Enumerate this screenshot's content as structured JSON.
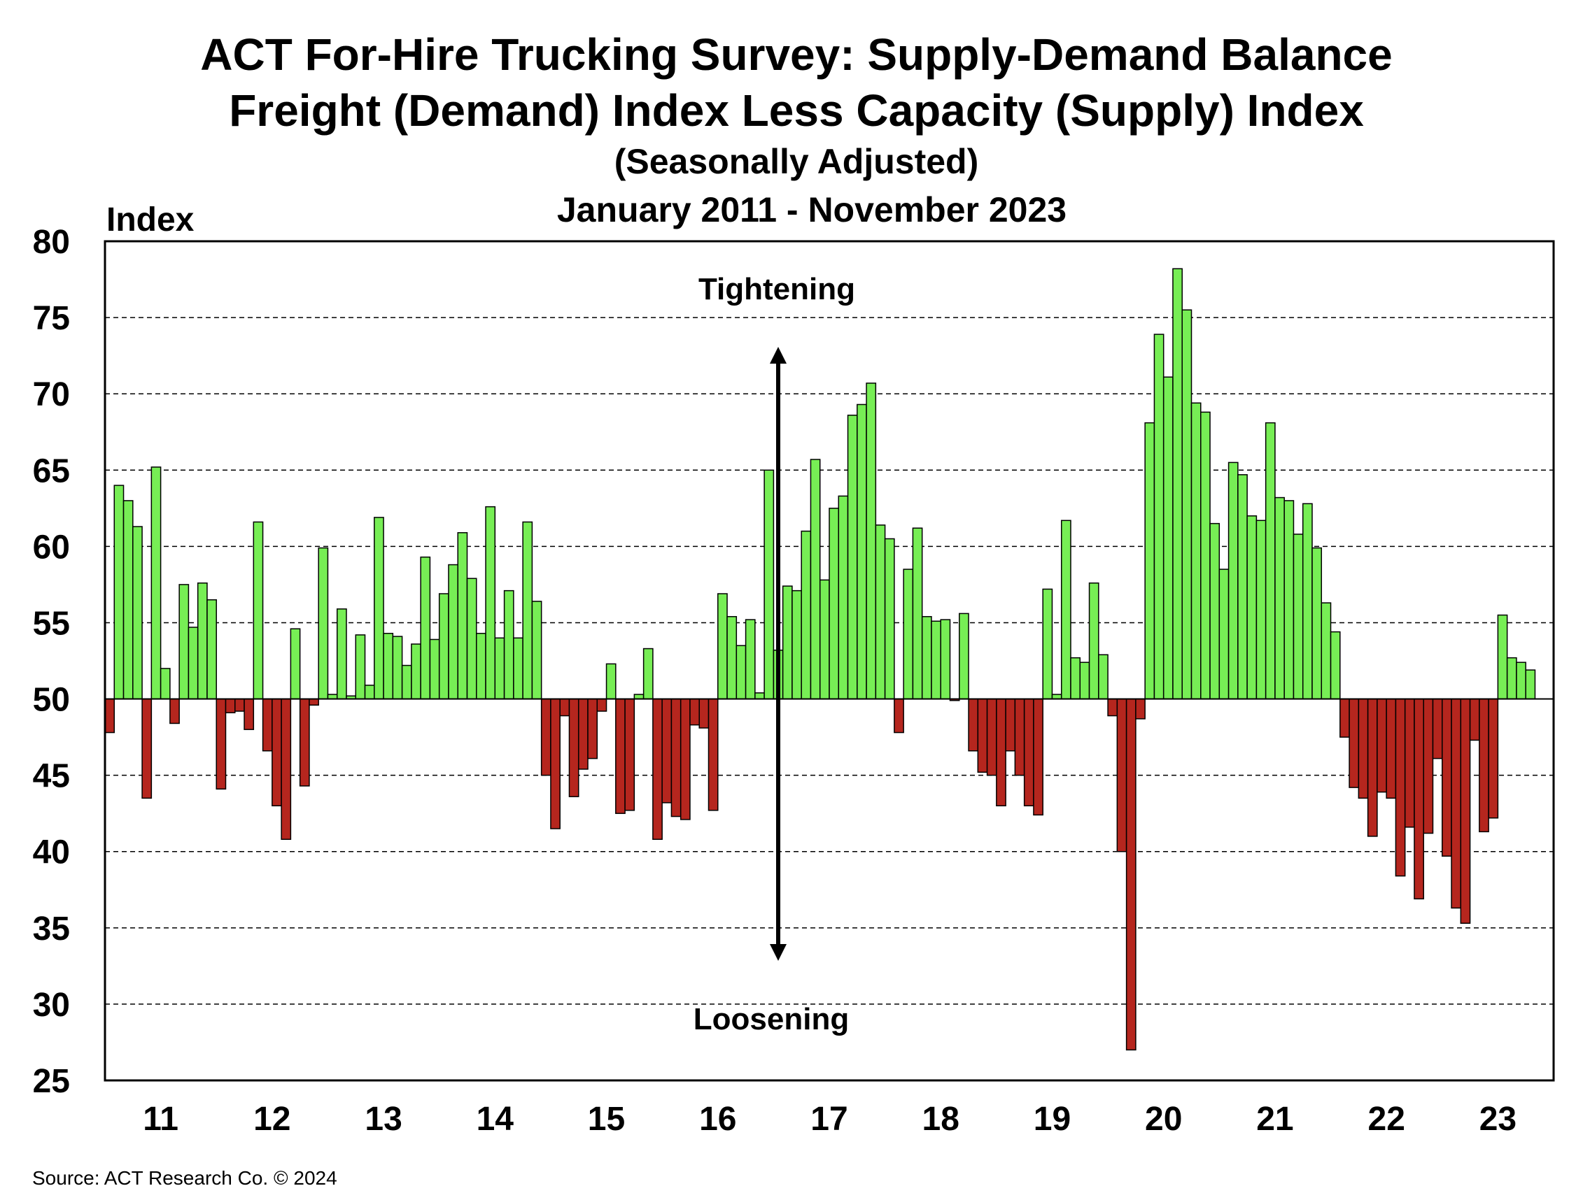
{
  "chart_data": {
    "type": "bar",
    "title": [
      "ACT For-Hire Trucking Survey: Supply-Demand Balance",
      "Freight (Demand) Index Less Capacity (Supply) Index"
    ],
    "subtitle": [
      "(Seasonally Adjusted)",
      "January 2011 - November 2023"
    ],
    "ylabel": "Index",
    "ylim": [
      25,
      80
    ],
    "yticks": [
      25,
      30,
      35,
      40,
      45,
      50,
      55,
      60,
      65,
      70,
      75,
      80
    ],
    "baseline": 50,
    "grid": "horizontal dashed",
    "xtick_labels": [
      "11",
      "12",
      "13",
      "14",
      "15",
      "16",
      "17",
      "18",
      "19",
      "20",
      "21",
      "22",
      "23"
    ],
    "x_start": "2011-01",
    "x_end": "2023-11",
    "annotations": {
      "top": "Tightening",
      "bottom": "Loosening"
    },
    "colors": {
      "above": "#77ee55",
      "below": "#b5261e"
    },
    "values": [
      47.8,
      64.0,
      63.0,
      61.3,
      43.5,
      65.2,
      52.0,
      48.4,
      57.5,
      54.7,
      57.6,
      56.5,
      44.1,
      49.1,
      49.2,
      48.0,
      61.6,
      46.6,
      43.0,
      40.8,
      54.6,
      44.3,
      49.6,
      59.9,
      50.3,
      55.9,
      50.2,
      54.2,
      50.9,
      61.9,
      54.3,
      54.1,
      52.2,
      53.6,
      59.3,
      53.9,
      56.9,
      58.8,
      60.9,
      57.9,
      54.3,
      62.6,
      54.0,
      57.1,
      54.0,
      61.6,
      56.4,
      45.0,
      41.5,
      48.9,
      43.6,
      45.4,
      46.1,
      49.2,
      52.3,
      42.5,
      42.7,
      50.3,
      53.3,
      40.8,
      43.2,
      42.3,
      42.1,
      48.3,
      48.1,
      42.7,
      56.9,
      55.4,
      53.5,
      55.2,
      50.4,
      65.0,
      53.2,
      57.4,
      57.1,
      61.0,
      65.7,
      57.8,
      62.5,
      63.3,
      68.6,
      69.3,
      70.7,
      61.4,
      60.5,
      47.8,
      58.5,
      61.2,
      55.4,
      55.1,
      55.2,
      49.9,
      55.6,
      46.6,
      45.2,
      45.0,
      43.0,
      46.6,
      45.0,
      43.0,
      42.4,
      57.2,
      50.3,
      61.7,
      52.7,
      52.4,
      57.6,
      52.9,
      48.9,
      40.0,
      27.0,
      48.7,
      68.1,
      73.9,
      71.1,
      78.2,
      75.5,
      69.4,
      68.8,
      61.5,
      58.5,
      65.5,
      64.7,
      62.0,
      61.7,
      68.1,
      63.2,
      63.0,
      60.8,
      62.8,
      59.9,
      56.3,
      54.4,
      47.5,
      44.2,
      43.5,
      41.0,
      43.9,
      43.5,
      38.4,
      41.6,
      36.9,
      41.2,
      46.1,
      39.7,
      36.3,
      35.3,
      47.3,
      41.3,
      42.2,
      55.5,
      52.7,
      52.4,
      51.9
    ]
  },
  "source": "Source: ACT Research Co. © 2024"
}
